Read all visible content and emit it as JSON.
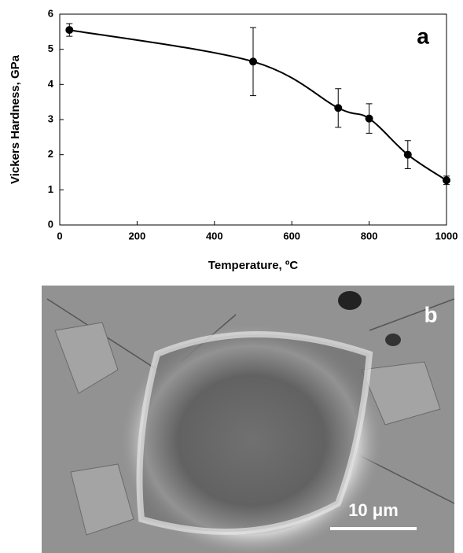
{
  "chart_data": {
    "type": "line",
    "x_label": "Temperature, ºC",
    "y_label": "Vickers Hardness, GPa",
    "panel_label": "a",
    "x": [
      25,
      500,
      720,
      800,
      900,
      1000
    ],
    "series": [
      {
        "color": "#000000",
        "values": [
          5.55,
          4.65,
          3.33,
          3.03,
          2.0,
          1.27
        ],
        "errors": [
          0.18,
          0.97,
          0.55,
          0.42,
          0.4,
          0.12
        ]
      }
    ],
    "xlim": [
      0,
      1000
    ],
    "xticks": [
      0,
      200,
      400,
      600,
      800,
      1000
    ],
    "ylim": [
      0,
      6
    ],
    "yticks": [
      0,
      1,
      2,
      3,
      4,
      5,
      6
    ]
  },
  "image": {
    "panel_label": "b",
    "scale_bar": "10 μm"
  }
}
